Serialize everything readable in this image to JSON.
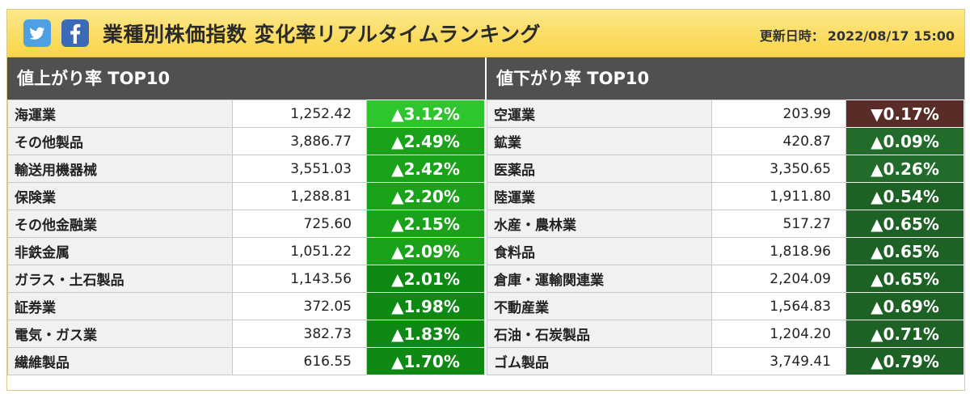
{
  "header": {
    "title": "業種別株価指数 変化率リアルタイムランキング",
    "updated_label": "更新日時：",
    "updated_value": "2022/08/17 15:00",
    "icons": [
      "twitter-icon",
      "facebook-icon"
    ]
  },
  "gainers": {
    "heading": "値上がり率 TOP10",
    "rows": [
      {
        "name": "海運業",
        "value": "1,252.42",
        "change": "▲3.12%"
      },
      {
        "name": "その他製品",
        "value": "3,886.77",
        "change": "▲2.49%"
      },
      {
        "name": "輸送用機器械",
        "value": "3,551.03",
        "change": "▲2.42%"
      },
      {
        "name": "保険業",
        "value": "1,288.81",
        "change": "▲2.20%"
      },
      {
        "name": "その他金融業",
        "value": "725.60",
        "change": "▲2.15%"
      },
      {
        "name": "非鉄金属",
        "value": "1,051.22",
        "change": "▲2.09%"
      },
      {
        "name": "ガラス・土石製品",
        "value": "1,143.56",
        "change": "▲2.01%"
      },
      {
        "name": "証券業",
        "value": "372.05",
        "change": "▲1.98%"
      },
      {
        "name": "電気・ガス業",
        "value": "382.73",
        "change": "▲1.83%"
      },
      {
        "name": "繊維製品",
        "value": "616.55",
        "change": "▲1.70%"
      }
    ]
  },
  "losers": {
    "heading": "値下がり率 TOP10",
    "rows": [
      {
        "name": "空運業",
        "value": "203.99",
        "change": "▼0.17%"
      },
      {
        "name": "鉱業",
        "value": "420.87",
        "change": "▲0.09%"
      },
      {
        "name": "医薬品",
        "value": "3,350.65",
        "change": "▲0.26%"
      },
      {
        "name": "陸運業",
        "value": "1,911.80",
        "change": "▲0.54%"
      },
      {
        "name": "水産・農林業",
        "value": "517.27",
        "change": "▲0.65%"
      },
      {
        "name": "食料品",
        "value": "1,818.96",
        "change": "▲0.65%"
      },
      {
        "name": "倉庫・運輸関連業",
        "value": "2,204.09",
        "change": "▲0.65%"
      },
      {
        "name": "不動産業",
        "value": "1,564.83",
        "change": "▲0.69%"
      },
      {
        "name": "石油・石炭製品",
        "value": "1,204.20",
        "change": "▲0.71%"
      },
      {
        "name": "ゴム製品",
        "value": "3,749.41",
        "change": "▲0.79%"
      }
    ]
  },
  "colors": {
    "header_bg": "#f9d548",
    "section_bg": "#505050",
    "up_bright": "#2ec52e",
    "up_mid": "#1aa31a",
    "up_dark": "#236b2b",
    "down": "#5a2c28"
  }
}
